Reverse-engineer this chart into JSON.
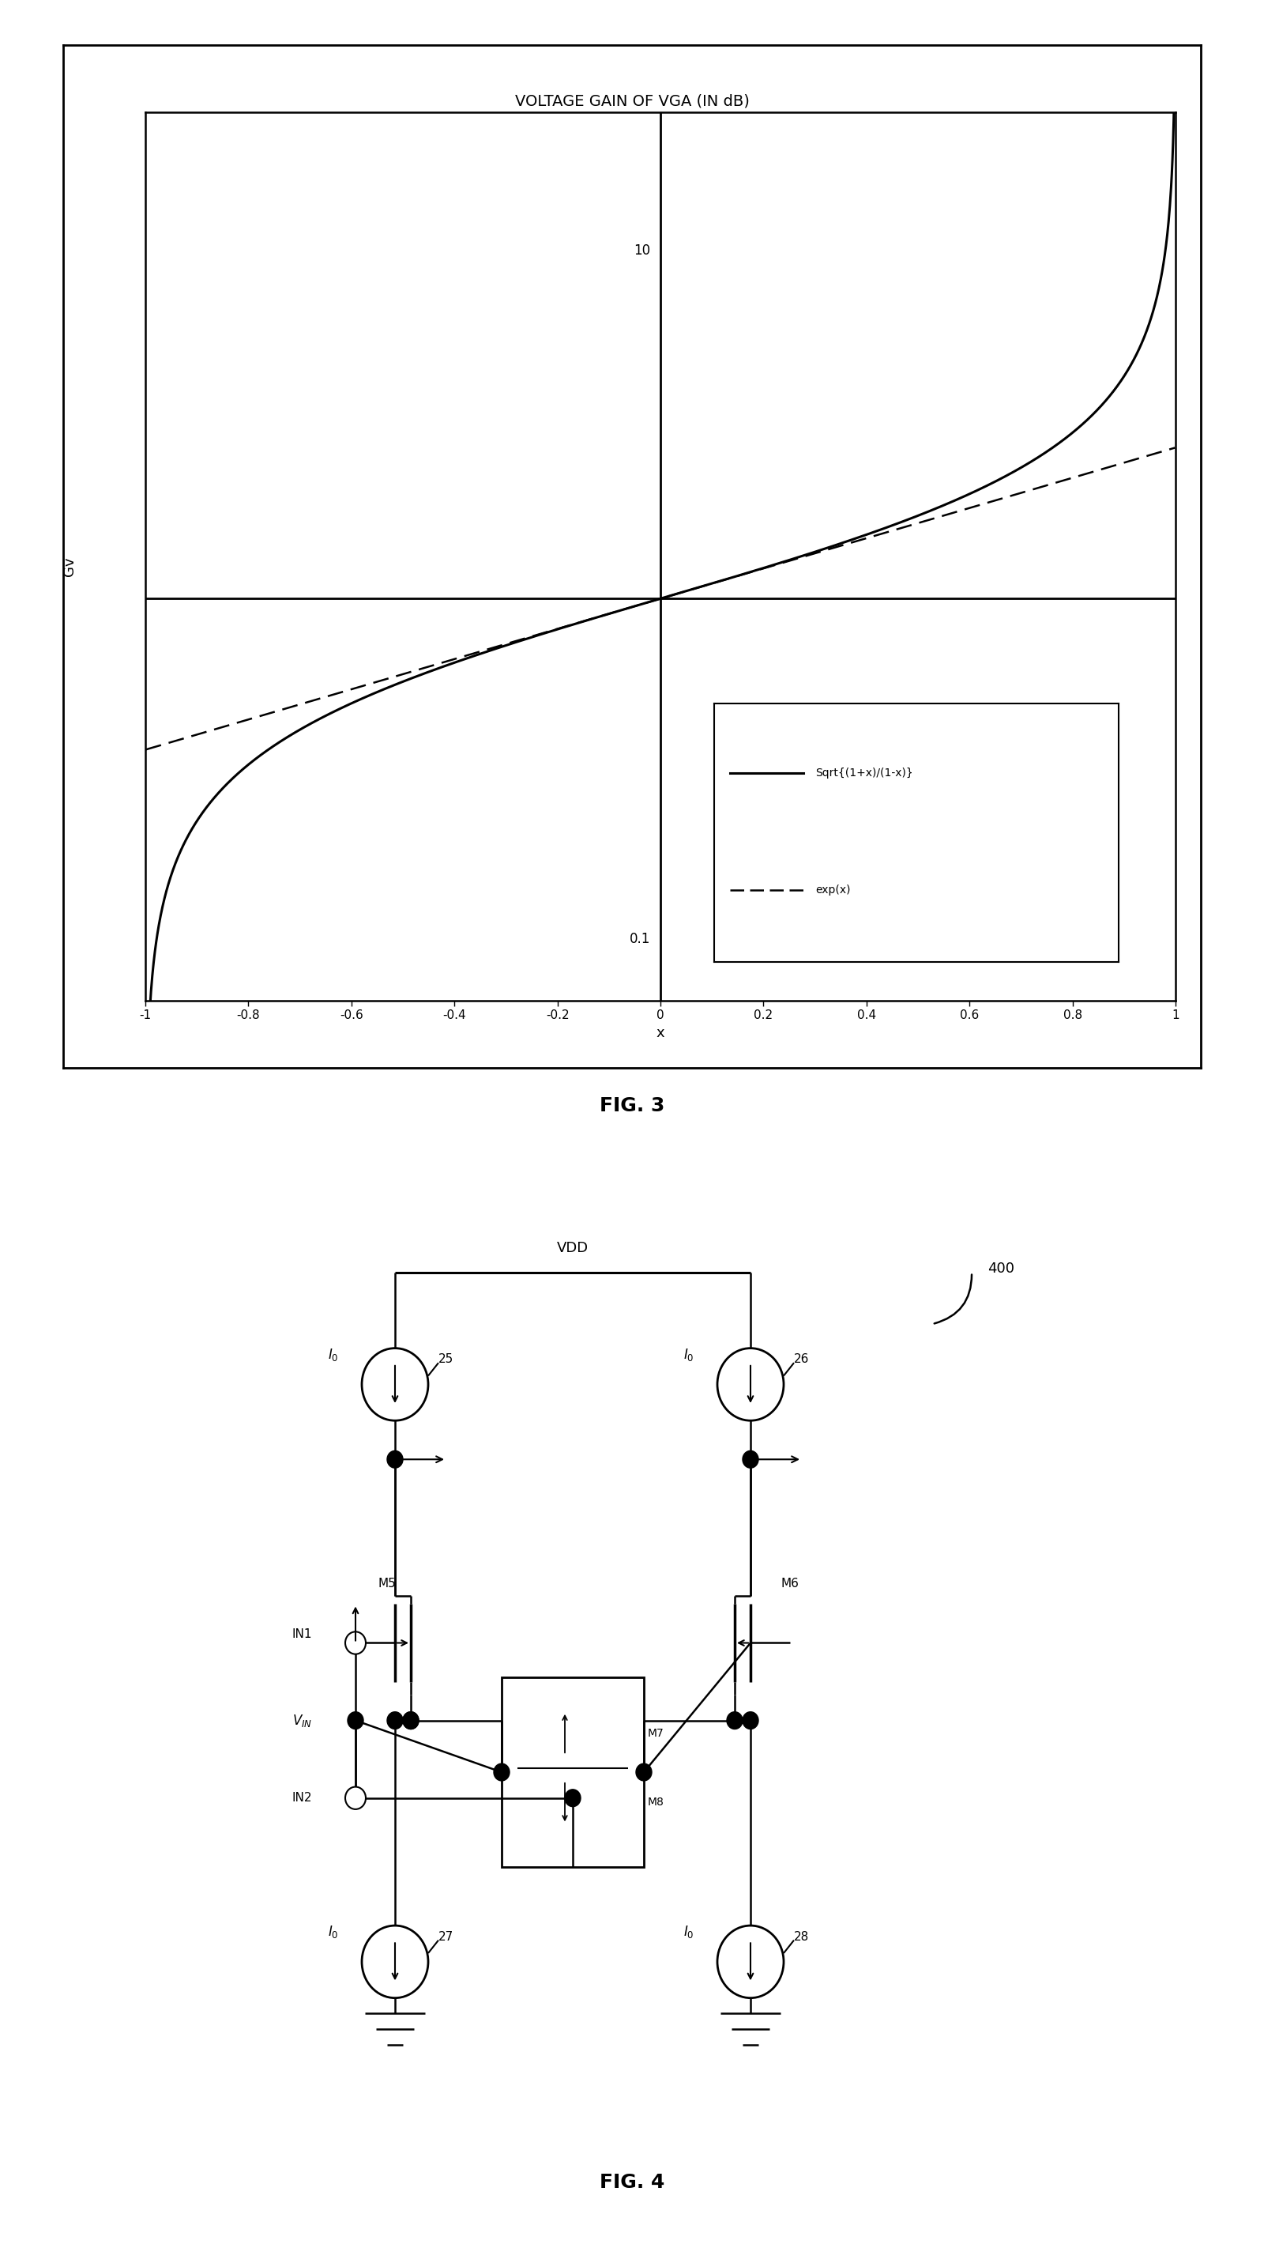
{
  "fig3_title": "VOLTAGE GAIN OF VGA (IN dB)",
  "fig3_xlabel": "x",
  "fig3_ylabel": "Gv",
  "fig3_xticks": [
    -1,
    -0.8,
    -0.6,
    -0.4,
    -0.2,
    0,
    0.2,
    0.4,
    0.6,
    0.8,
    1
  ],
  "fig3_xtick_labels": [
    "-1",
    "-0.8",
    "-0.6",
    "-0.4",
    "-0.2",
    "0",
    "0.2",
    "0.4",
    "0.6",
    "0.8",
    "1"
  ],
  "fig3_ytick_top": "10",
  "fig3_ytick_bottom": "0.1",
  "fig3_legend1": "Sqrt{(1+x)/(1-x)}",
  "fig3_legend2": "exp(x)",
  "fig4_label": "FIG. 4",
  "fig3_label": "FIG. 3",
  "fig4_ref": "400",
  "line_color": "#000000",
  "bg_color": "#ffffff",
  "vdd_label": "VDD",
  "vin_label": "V_IN",
  "in1_label": "IN1",
  "in2_label": "IN2",
  "cs_labels": [
    "25",
    "26",
    "27",
    "28"
  ],
  "mosfet_labels": [
    "M5",
    "M6",
    "M7",
    "M8"
  ],
  "i0_label": "I_0"
}
